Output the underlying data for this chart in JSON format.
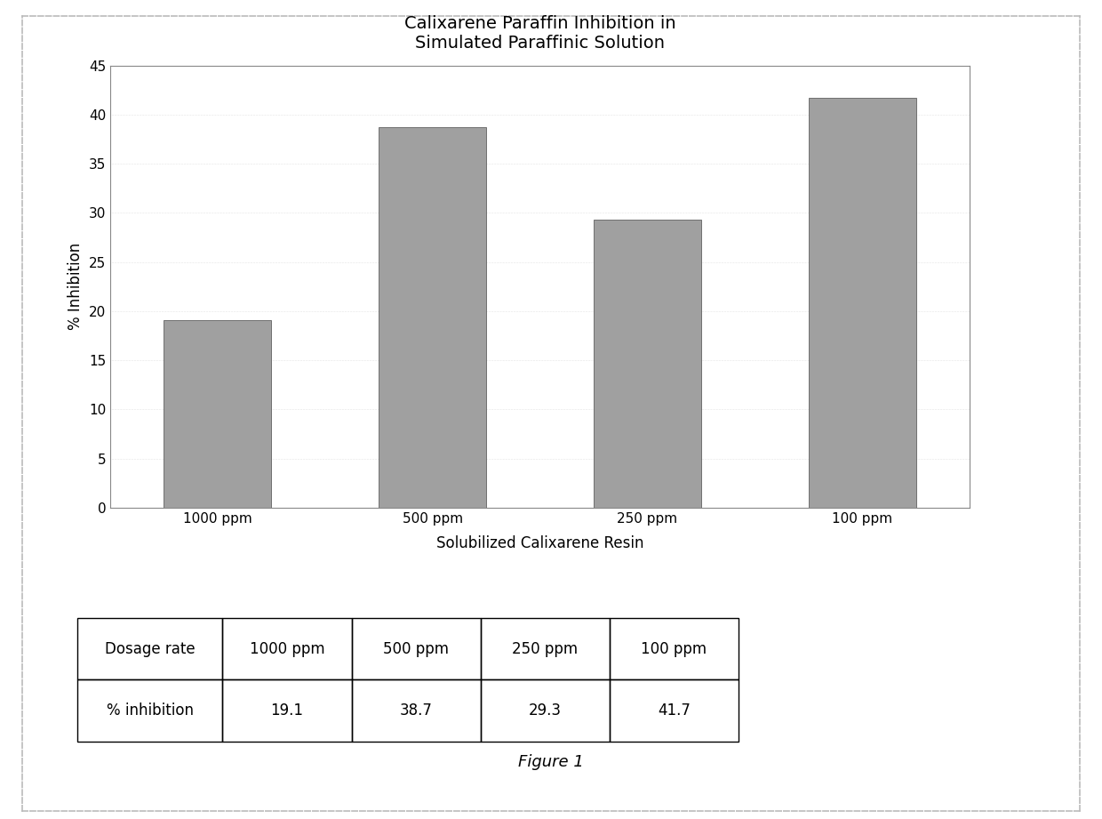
{
  "title_line1": "Calixarene Paraffin Inhibition in",
  "title_line2": "Simulated Paraffinic Solution",
  "categories": [
    "1000 ppm",
    "500 ppm",
    "250 ppm",
    "100 ppm"
  ],
  "values": [
    19.1,
    38.7,
    29.3,
    41.7
  ],
  "ylabel": "% Inhibition",
  "xlabel": "Solubilized Calixarene Resin",
  "ylim": [
    0,
    45
  ],
  "yticks": [
    0,
    5,
    10,
    15,
    20,
    25,
    30,
    35,
    40,
    45
  ],
  "bar_color": "#a0a0a0",
  "bar_edgecolor": "#606060",
  "figure_caption": "Figure 1",
  "table_headers": [
    "Dosage rate",
    "1000 ppm",
    "500 ppm",
    "250 ppm",
    "100 ppm"
  ],
  "table_row_label": "% inhibition",
  "table_values": [
    "19.1",
    "38.7",
    "29.3",
    "41.7"
  ],
  "background_color": "#ffffff",
  "outer_box_color": "#bbbbbb",
  "title_fontsize": 14,
  "axis_label_fontsize": 12,
  "tick_fontsize": 11,
  "table_fontsize": 12,
  "caption_fontsize": 13
}
